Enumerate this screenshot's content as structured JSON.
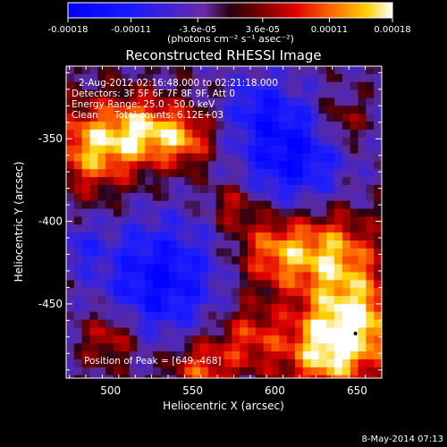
{
  "chart_data": {
    "type": "heatmap",
    "title": "Reconstructed RHESSI Image",
    "xlabel": "Heliocentric X (arcsec)",
    "ylabel": "Heliocentric Y (arcsec)",
    "xlim": [
      473,
      665
    ],
    "ylim": [
      -495,
      -306
    ],
    "x_ticks": [
      500,
      550,
      600,
      650
    ],
    "y_ticks": [
      -350,
      -400,
      -450
    ],
    "colorbar": {
      "tick_labels": [
        "-0.00018",
        "-0.00011",
        "-3.6e-05",
        "3.6e-05",
        "0.00011",
        "0.00018"
      ],
      "tick_values": [
        -0.00018,
        -0.00011,
        -3.6e-05,
        3.6e-05,
        0.00011,
        0.00018
      ],
      "range": [
        -0.00018,
        0.00018
      ],
      "unit_label": "(photons cm⁻² s⁻¹ asec⁻²)"
    },
    "annotations": {
      "time_range": "2-Aug-2012 02:16:48.000 to 02:21:18.000",
      "detectors": "Detectors: 3F 5F 6F 7F 8F 9F, Att 0",
      "energy": "Energy Range: 25.0 - 50.0 keV",
      "clean_label": "Clean",
      "total_counts": "Total counts: 6.12E+03",
      "peak": "Position of Peak = [649,-468]"
    },
    "peak_position": [
      649,
      -468
    ]
  },
  "footer": {
    "date": "8-May-2014 07:13"
  },
  "colors": {
    "background": "#000000",
    "text": "#ffffff"
  }
}
